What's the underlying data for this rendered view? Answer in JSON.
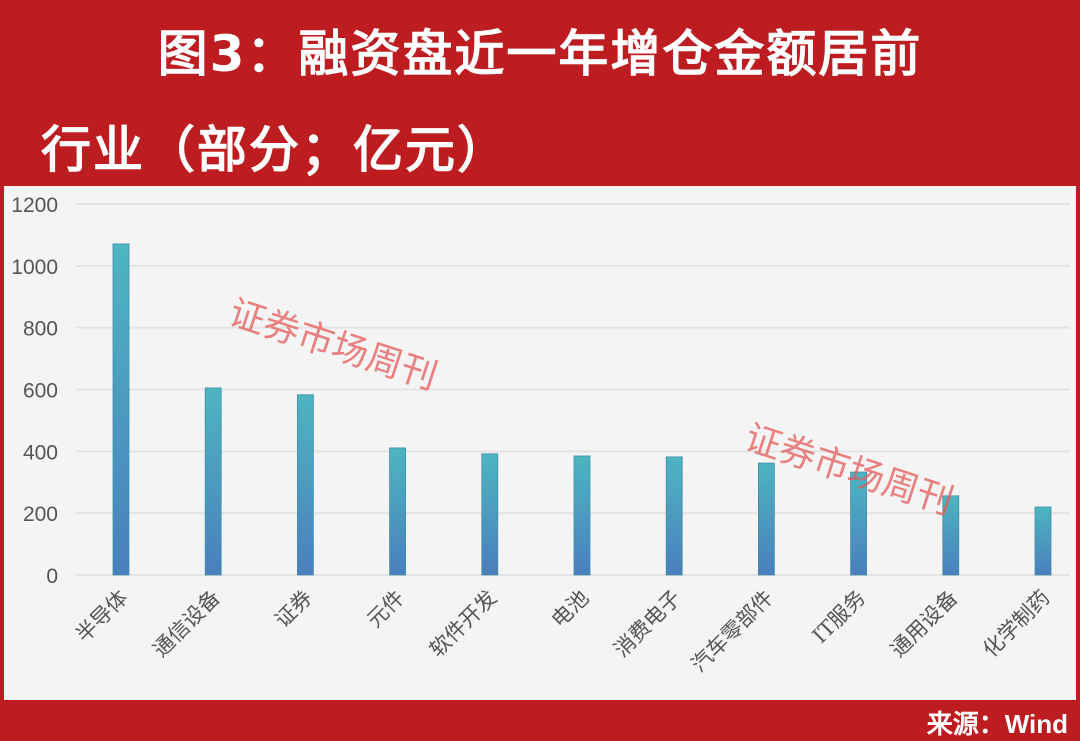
{
  "title_line1": "图3：融资盘近一年增仓金额居前",
  "title_line2": "行业（部分；亿元）",
  "source": "来源：Wind",
  "watermark": "证券市场周刊",
  "colors": {
    "background": "#bd1c20",
    "bar_top": "#4db5c0",
    "bar_bottom": "#4a7fbd",
    "plot_bg": "#f4f4f4"
  },
  "chart_data": {
    "type": "bar",
    "categories": [
      "半导体",
      "通信设备",
      "证券",
      "元件",
      "软件开发",
      "电池",
      "消费电子",
      "汽车零部件",
      "IT服务",
      "通用设备",
      "化学制药"
    ],
    "values": [
      1071,
      605,
      583,
      411,
      392,
      385,
      382,
      362,
      333,
      256,
      220
    ],
    "ylim": [
      0,
      1200
    ],
    "yticks": [
      0,
      200,
      400,
      600,
      800,
      1000,
      1200
    ],
    "grid": true,
    "legend": "none"
  }
}
